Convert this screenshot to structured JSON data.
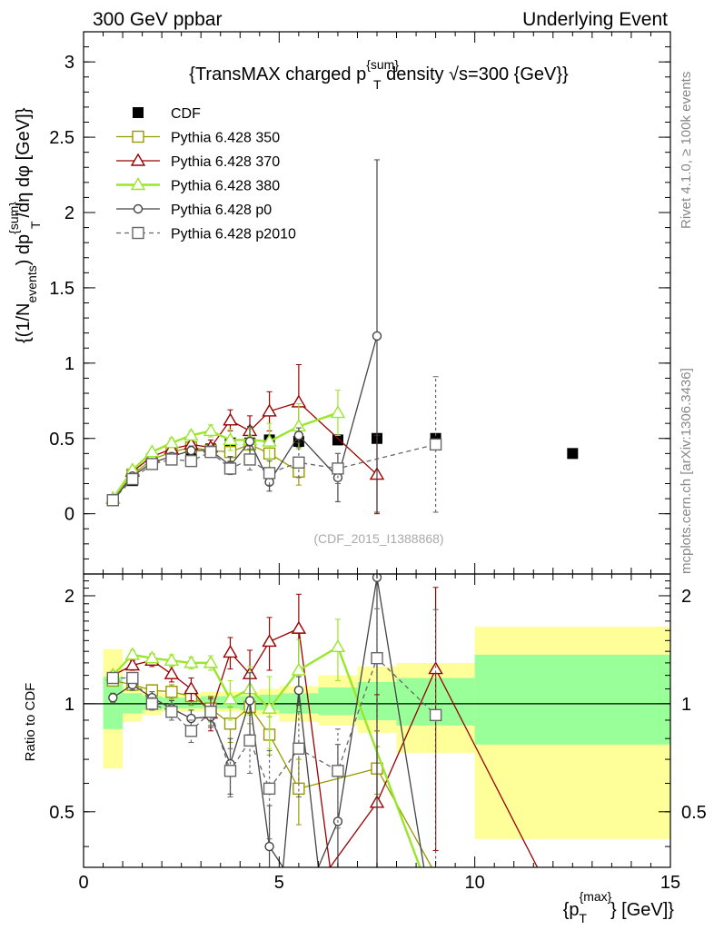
{
  "header": {
    "left": "300 GeV ppbar",
    "right": "Underlying Event"
  },
  "side_labels": {
    "rivet": "Rivet 4.1.0, ≥ 100k events",
    "mcplots": "mcplots.cern.ch [arXiv:1306.3436]"
  },
  "chart_data": [
    {
      "type": "scatter",
      "panel": "main",
      "title": "{TransMAX charged p^{sum}_T density √s=300 {GeV}}",
      "title_parts": {
        "pre": "{TransMAX charged p",
        "sup": "{sum}",
        "sub": "T",
        "post": " density √s=300 {GeV}}"
      },
      "watermark": "(CDF_2015_I1388868)",
      "xlabel": "{p_T^{max}} [GeV]",
      "xlabel_parts": {
        "pre": "{p",
        "sup": "{max}",
        "sub": "T",
        "post": "} [GeV]}"
      },
      "ylabel": "{(1/N_events) dp^{sum}_T /dη dφ [GeV]}",
      "ylabel_parts": {
        "a": "{(1/N",
        "a_sub": "events",
        "b": ") dp",
        "b_sup": "{sum}",
        "b_sub": "T",
        "c": "/dη  dφ [GeV]}"
      },
      "xlim": [
        0,
        15
      ],
      "ylim": [
        -0.4,
        3.2
      ],
      "y_ticks": [
        0,
        0.5,
        1,
        1.5,
        2,
        2.5,
        3
      ],
      "y_tick_labels": [
        "0",
        "0.5",
        "1",
        "1.5",
        "2",
        "2.5",
        "3"
      ],
      "series": [
        {
          "name": "CDF",
          "style": "data",
          "color": "#000000",
          "marker": "filled-square",
          "x": [
            0.75,
            1.25,
            1.75,
            2.25,
            2.75,
            3.25,
            3.75,
            4.25,
            4.75,
            5.5,
            6.5,
            7.5,
            9.0,
            12.5
          ],
          "y": [
            0.09,
            0.22,
            0.33,
            0.38,
            0.42,
            0.43,
            0.47,
            0.47,
            0.49,
            0.48,
            0.49,
            0.5,
            0.5,
            0.4
          ],
          "err": [
            0.01,
            0.01,
            0.01,
            0.01,
            0.01,
            0.01,
            0.01,
            0.01,
            0.01,
            0.01,
            0.01,
            0.01,
            0.01,
            0.01
          ]
        },
        {
          "name": "Pythia 6.428 350",
          "style": "solid",
          "color": "#999900",
          "marker": "open-square",
          "x": [
            0.75,
            1.25,
            1.75,
            2.25,
            2.75,
            3.25,
            3.75,
            4.25,
            4.75,
            5.5
          ],
          "y": [
            0.09,
            0.26,
            0.36,
            0.41,
            0.44,
            0.42,
            0.41,
            0.46,
            0.4,
            0.28
          ],
          "err": [
            0.01,
            0.02,
            0.02,
            0.03,
            0.03,
            0.04,
            0.06,
            0.08,
            0.1,
            0.09
          ]
        },
        {
          "name": "Pythia 6.428 370",
          "style": "solid",
          "color": "#990000",
          "marker": "open-triangle",
          "x": [
            0.75,
            1.25,
            1.75,
            2.25,
            2.75,
            3.25,
            3.75,
            4.25,
            4.75,
            5.5,
            7.5
          ],
          "y": [
            0.1,
            0.28,
            0.38,
            0.43,
            0.46,
            0.44,
            0.62,
            0.55,
            0.68,
            0.74,
            0.26
          ],
          "err": [
            0.01,
            0.02,
            0.03,
            0.03,
            0.04,
            0.05,
            0.07,
            0.1,
            0.13,
            0.25,
            0.26
          ]
        },
        {
          "name": "Pythia 6.428 380",
          "style": "solid",
          "color": "#99e62a",
          "marker": "open-triangle",
          "linewidth": 2.4,
          "x": [
            0.75,
            1.25,
            1.75,
            2.25,
            2.75,
            3.25,
            3.75,
            4.25,
            4.75,
            5.5,
            6.5
          ],
          "y": [
            0.1,
            0.29,
            0.41,
            0.47,
            0.52,
            0.55,
            0.49,
            0.49,
            0.48,
            0.58,
            0.67
          ],
          "err": [
            0.01,
            0.02,
            0.02,
            0.03,
            0.03,
            0.04,
            0.07,
            0.07,
            0.12,
            0.15,
            0.15
          ]
        },
        {
          "name": "Pythia 6.428 p0",
          "style": "solid",
          "color": "#444444",
          "marker": "open-circle",
          "x": [
            0.75,
            1.25,
            1.75,
            2.25,
            2.75,
            3.25,
            3.75,
            4.25,
            4.75,
            5.5,
            6.5,
            7.5
          ],
          "y": [
            0.09,
            0.25,
            0.34,
            0.38,
            0.42,
            0.42,
            0.32,
            0.48,
            0.21,
            0.52,
            0.24,
            1.18
          ],
          "err": [
            0.01,
            0.02,
            0.02,
            0.02,
            0.03,
            0.03,
            0.06,
            0.1,
            0.06,
            0.05,
            0.16,
            1.17
          ]
        },
        {
          "name": "Pythia 6.428 p2010",
          "style": "dashed",
          "color": "#666666",
          "marker": "open-square",
          "x": [
            0.75,
            1.25,
            1.75,
            2.25,
            2.75,
            3.25,
            3.75,
            4.25,
            4.75,
            5.5,
            6.5,
            9.0
          ],
          "y": [
            0.09,
            0.23,
            0.33,
            0.36,
            0.35,
            0.41,
            0.3,
            0.36,
            0.27,
            0.34,
            0.3,
            0.46
          ],
          "err": [
            0.01,
            0.02,
            0.02,
            0.02,
            0.03,
            0.03,
            0.04,
            0.07,
            0.08,
            0.1,
            0.1,
            0.45
          ]
        }
      ],
      "legend": [
        "CDF",
        "Pythia 6.428 350",
        "Pythia 6.428 370",
        "Pythia 6.428 380",
        "Pythia 6.428 p0",
        "Pythia 6.428 p2010"
      ],
      "legend_position": "top-left"
    },
    {
      "type": "line",
      "panel": "ratio",
      "ylabel": "Ratio to CDF",
      "xlim": [
        0,
        15
      ],
      "ylim": [
        0.35,
        2.3
      ],
      "x_ticks": [
        0,
        5,
        10,
        15
      ],
      "x_tick_labels": [
        "0",
        "5",
        "10",
        "15"
      ],
      "y_ticks": [
        0.5,
        1,
        2
      ],
      "y_tick_labels": [
        "0.5",
        "1",
        "2"
      ],
      "reference": 1,
      "bands": {
        "edges": [
          0.5,
          1.0,
          1.5,
          2.0,
          2.5,
          3.0,
          3.5,
          4.0,
          4.5,
          5.0,
          6.0,
          7.0,
          8.0,
          10.0,
          15.0
        ],
        "yellow_low": [
          0.66,
          0.89,
          0.93,
          0.95,
          0.95,
          0.95,
          0.95,
          0.93,
          0.93,
          0.89,
          0.87,
          0.83,
          0.73,
          0.42
        ],
        "yellow_high": [
          1.42,
          1.12,
          1.08,
          1.07,
          1.07,
          1.08,
          1.08,
          1.08,
          1.1,
          1.12,
          1.2,
          1.27,
          1.3,
          1.64
        ],
        "green_low": [
          0.85,
          0.94,
          0.96,
          0.97,
          0.97,
          0.97,
          0.97,
          0.96,
          0.96,
          0.94,
          0.93,
          0.9,
          0.87,
          0.77
        ],
        "green_high": [
          1.19,
          1.07,
          1.05,
          1.04,
          1.04,
          1.05,
          1.05,
          1.05,
          1.06,
          1.07,
          1.11,
          1.15,
          1.18,
          1.37
        ]
      },
      "series": [
        {
          "name": "Pythia 6.428 350",
          "color": "#999900",
          "marker": "open-square",
          "style": "solid",
          "x": [
            0.75,
            1.25,
            1.75,
            2.25,
            2.75,
            3.25,
            3.75,
            4.25,
            4.75,
            5.5,
            7.5,
            8.9
          ],
          "y": [
            1.16,
            1.13,
            1.09,
            1.08,
            1.05,
            0.97,
            0.88,
            0.98,
            0.82,
            0.58,
            0.66,
            0.35
          ],
          "err": [
            0.03,
            0.04,
            0.04,
            0.05,
            0.06,
            0.08,
            0.1,
            0.1,
            0.1,
            0.12,
            0.1,
            0
          ],
          "marker_mask": [
            1,
            1,
            1,
            1,
            1,
            1,
            1,
            1,
            1,
            1,
            1,
            0
          ]
        },
        {
          "name": "Pythia 6.428 370",
          "color": "#990000",
          "marker": "open-triangle",
          "style": "solid",
          "x": [
            0.75,
            1.25,
            1.75,
            2.25,
            2.75,
            3.25,
            3.75,
            4.25,
            4.75,
            5.5,
            6.3,
            7.5,
            9.0,
            11.6
          ],
          "y": [
            1.2,
            1.28,
            1.32,
            1.21,
            1.1,
            0.94,
            1.39,
            1.21,
            1.49,
            1.62,
            0.35,
            0.53,
            1.25,
            0.35
          ],
          "err": [
            0.03,
            0.04,
            0.05,
            0.06,
            0.08,
            0.1,
            0.14,
            0.2,
            0.25,
            0.4,
            0,
            0.53,
            0.86,
            0
          ],
          "marker_mask": [
            1,
            1,
            1,
            1,
            1,
            1,
            1,
            1,
            1,
            1,
            0,
            1,
            1,
            0
          ]
        },
        {
          "name": "Pythia 6.428 380",
          "color": "#99e62a",
          "marker": "open-triangle",
          "style": "solid",
          "linewidth": 2.4,
          "x": [
            0.75,
            1.25,
            1.75,
            2.25,
            2.75,
            3.25,
            3.75,
            4.25,
            4.75,
            5.5,
            6.5,
            8.6
          ],
          "y": [
            1.2,
            1.37,
            1.34,
            1.32,
            1.3,
            1.3,
            1.03,
            1.1,
            0.97,
            1.24,
            1.44,
            0.35
          ],
          "err": [
            0.03,
            0.04,
            0.04,
            0.05,
            0.05,
            0.06,
            0.13,
            0.17,
            0.22,
            0.27,
            0.28,
            0
          ],
          "marker_mask": [
            1,
            1,
            1,
            1,
            1,
            1,
            1,
            1,
            1,
            1,
            1,
            0
          ]
        },
        {
          "name": "Pythia 6.428 p0",
          "color": "#444444",
          "marker": "open-circle",
          "style": "solid",
          "x": [
            0.75,
            1.25,
            1.75,
            2.25,
            2.75,
            3.25,
            3.75,
            4.25,
            4.75,
            5.1,
            5.5,
            6.0,
            6.5,
            7.5,
            8.7
          ],
          "y": [
            1.04,
            1.13,
            1.04,
            0.97,
            0.91,
            0.92,
            0.68,
            1.02,
            0.4,
            0.35,
            1.09,
            0.35,
            0.47,
            2.25,
            0.35
          ],
          "err": [
            0.03,
            0.04,
            0.04,
            0.05,
            0.05,
            0.06,
            0.12,
            0.2,
            0.12,
            0,
            0.1,
            0,
            0.3,
            2.0,
            0
          ],
          "marker_mask": [
            1,
            1,
            1,
            1,
            1,
            1,
            1,
            1,
            1,
            0,
            1,
            0,
            1,
            1,
            0
          ]
        },
        {
          "name": "Pythia 6.428 p2010",
          "color": "#666666",
          "marker": "open-square",
          "style": "dashed",
          "x": [
            0.75,
            1.25,
            1.75,
            2.25,
            2.75,
            3.25,
            3.75,
            4.25,
            4.75,
            5.5,
            6.5,
            7.5,
            9.0
          ],
          "y": [
            1.18,
            1.18,
            1.0,
            0.95,
            0.84,
            0.95,
            0.65,
            0.79,
            0.58,
            0.75,
            0.65,
            1.34,
            0.93
          ],
          "err": [
            0.03,
            0.04,
            0.04,
            0.05,
            0.06,
            0.08,
            0.1,
            0.15,
            0.16,
            0.2,
            0.2,
            0.5,
            0.9
          ],
          "marker_mask": [
            1,
            1,
            1,
            1,
            1,
            1,
            1,
            1,
            1,
            1,
            1,
            1,
            1
          ]
        }
      ]
    }
  ]
}
